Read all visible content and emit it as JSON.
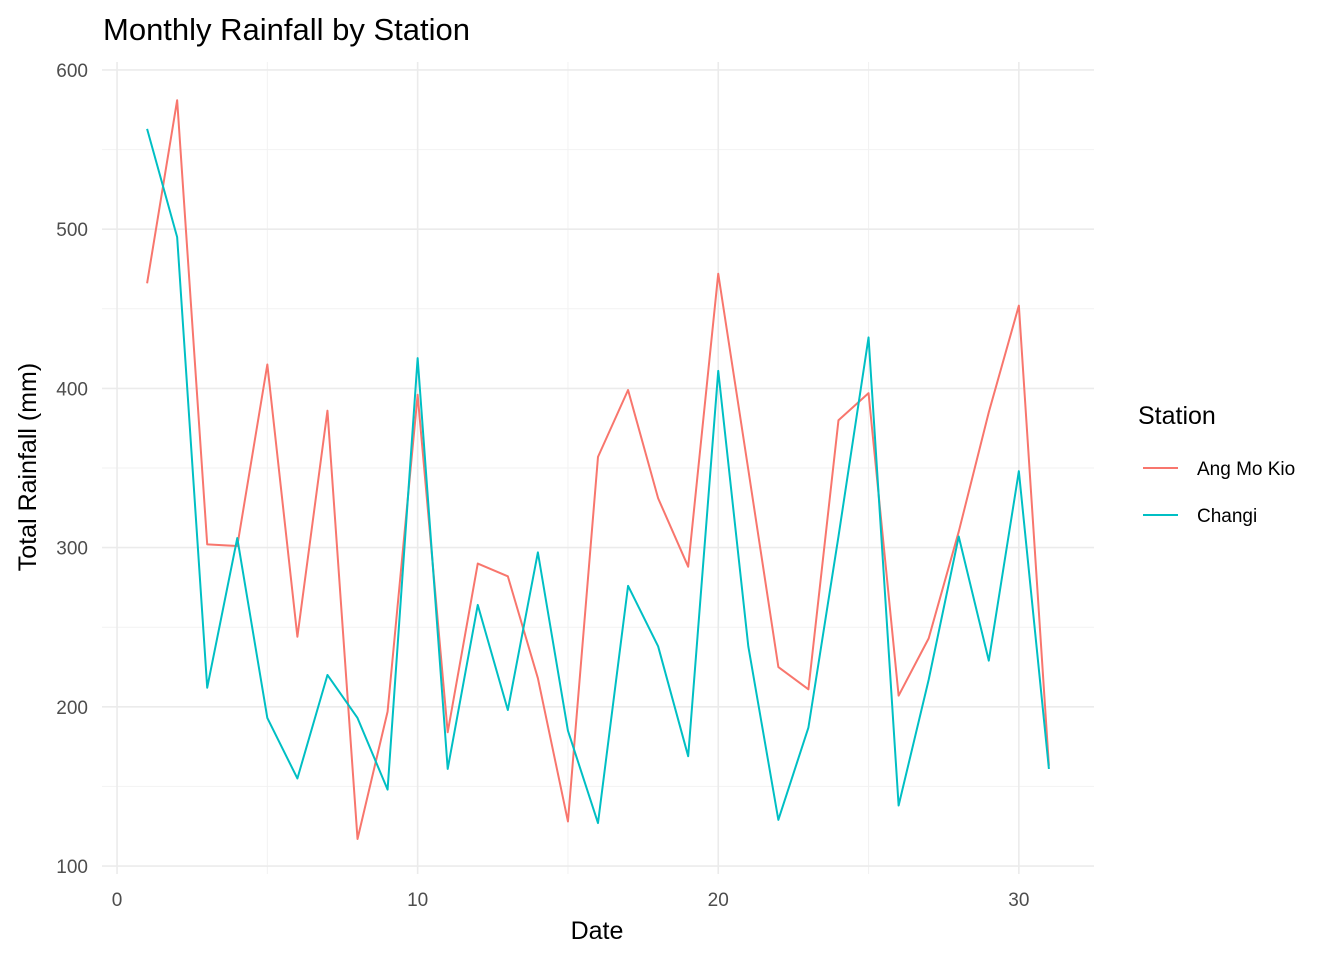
{
  "chart_data": {
    "type": "line",
    "title": "Monthly Rainfall by Station",
    "xlabel": "Date",
    "ylabel": "Total Rainfall (mm)",
    "xlim": [
      -0.5,
      32.5
    ],
    "ylim": [
      95,
      605
    ],
    "x_ticks": [
      0,
      10,
      20,
      30
    ],
    "y_ticks": [
      100,
      200,
      300,
      400,
      500,
      600
    ],
    "grid": true,
    "legend": {
      "title": "Station",
      "position": "right"
    },
    "x": [
      1,
      2,
      3,
      4,
      5,
      6,
      7,
      8,
      9,
      10,
      11,
      12,
      13,
      14,
      15,
      16,
      17,
      18,
      19,
      20,
      21,
      22,
      23,
      24,
      25,
      26,
      27,
      28,
      29,
      30,
      31
    ],
    "series": [
      {
        "name": "Ang Mo Kio",
        "color": "#F8766D",
        "values": [
          466,
          581,
          302,
          301,
          415,
          244,
          386,
          117,
          197,
          396,
          184,
          290,
          282,
          218,
          128,
          357,
          399,
          331,
          288,
          472,
          349,
          225,
          211,
          380,
          397,
          207,
          243,
          310,
          385,
          452,
          163
        ]
      },
      {
        "name": "Changi",
        "color": "#00BFC4",
        "values": [
          563,
          495,
          212,
          306,
          193,
          155,
          220,
          193,
          148,
          419,
          161,
          264,
          198,
          297,
          185,
          127,
          276,
          238,
          169,
          411,
          238,
          129,
          187,
          307,
          432,
          138,
          217,
          307,
          229,
          348,
          161
        ]
      }
    ]
  }
}
